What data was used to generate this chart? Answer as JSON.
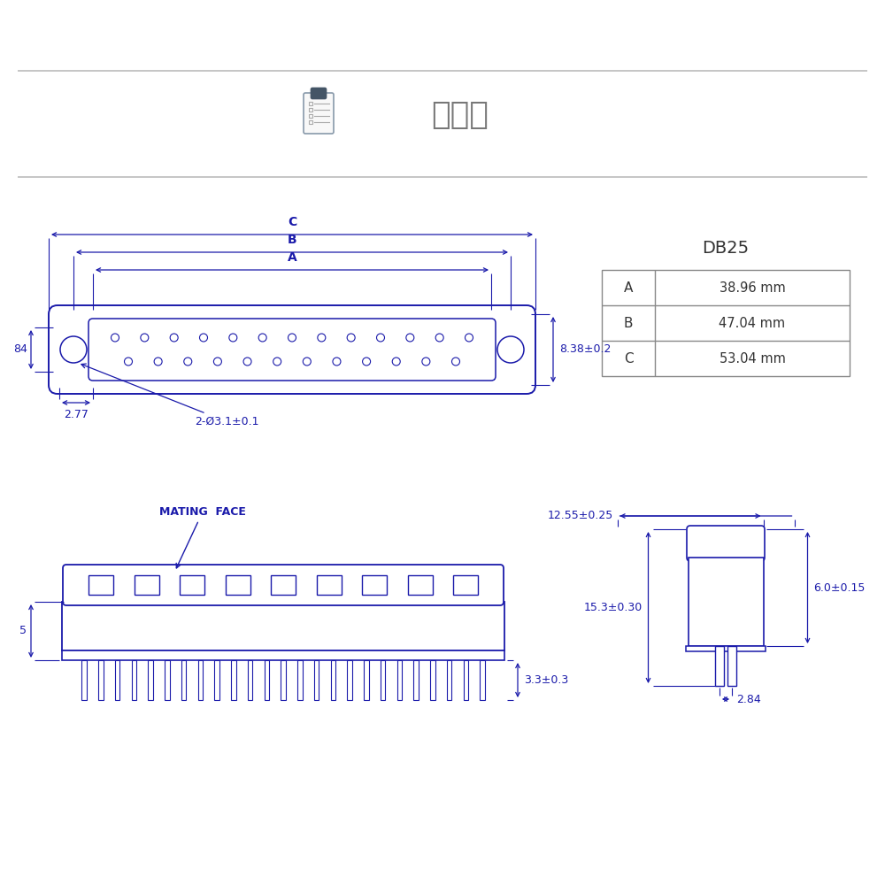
{
  "bg_color": "#ffffff",
  "line_color": "#1a1aaa",
  "table_line_color": "#888888",
  "title_color": "#777777",
  "title_text": "結構圖",
  "db_label": "DB25",
  "table_data": [
    [
      "A",
      "38.96 mm"
    ],
    [
      "B",
      "47.04 mm"
    ],
    [
      "C",
      "53.04 mm"
    ]
  ],
  "dim_A": "A",
  "dim_B": "B",
  "dim_C": "C",
  "label_8_38": "8.38±0.2",
  "label_84": "84",
  "label_2_77": "2.77",
  "label_hole": "2-Ø3.1±0.1",
  "label_mating": "MATING  FACE",
  "label_5": "5",
  "label_3_3": "3.3±0.3",
  "label_12_55": "12.55±0.25",
  "label_15_3": "15.3±0.30",
  "label_6_0": "6.0±0.15",
  "label_2_84": "2.84",
  "sep_line_color": "#bbbbbb"
}
